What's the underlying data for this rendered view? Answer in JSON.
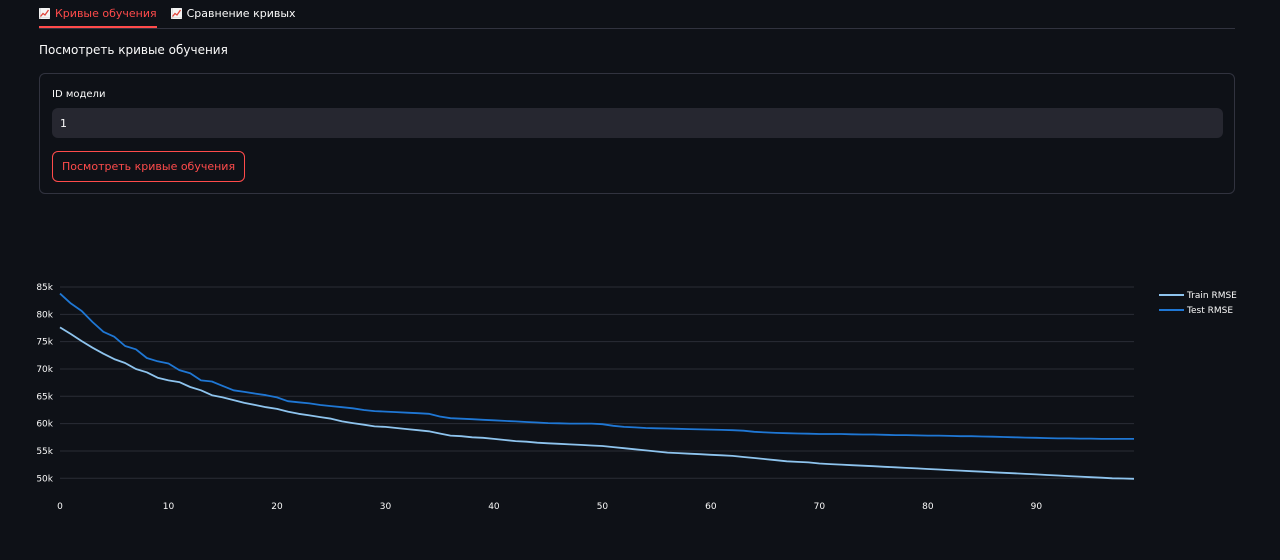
{
  "tabs": [
    {
      "label": "Кривые обучения",
      "active": true,
      "icon": "chart-increasing-icon"
    },
    {
      "label": "Сравнение кривых",
      "active": false,
      "icon": "chart-increasing-icon"
    }
  ],
  "section_title": "Посмотреть кривые обучения",
  "form": {
    "field_label": "ID модели",
    "field_value": "1",
    "submit_label": "Посмотреть кривые обучения"
  },
  "colors": {
    "accent": "#ff4b4b",
    "train": "#8ec4ee",
    "test": "#1f77d4",
    "grid": "#2a2d36",
    "background": "#0e1117"
  },
  "chart_data": {
    "type": "line",
    "x": [
      0,
      1,
      2,
      3,
      4,
      5,
      6,
      7,
      8,
      9,
      10,
      11,
      12,
      13,
      14,
      15,
      16,
      17,
      18,
      19,
      20,
      21,
      22,
      23,
      24,
      25,
      26,
      27,
      28,
      29,
      30,
      31,
      32,
      33,
      34,
      35,
      36,
      37,
      38,
      39,
      40,
      41,
      42,
      43,
      44,
      45,
      46,
      47,
      48,
      49,
      50,
      51,
      52,
      53,
      54,
      55,
      56,
      57,
      58,
      59,
      60,
      61,
      62,
      63,
      64,
      65,
      66,
      67,
      68,
      69,
      70,
      71,
      72,
      73,
      74,
      75,
      76,
      77,
      78,
      79,
      80,
      81,
      82,
      83,
      84,
      85,
      86,
      87,
      88,
      89,
      90,
      91,
      92,
      93,
      94,
      95,
      96,
      97,
      98,
      99
    ],
    "series": [
      {
        "name": "Train RMSE",
        "values": [
          77600,
          76400,
          75100,
          73900,
          72800,
          71800,
          71100,
          70000,
          69400,
          68400,
          67900,
          67600,
          66700,
          66100,
          65200,
          64800,
          64300,
          63800,
          63400,
          63000,
          62700,
          62200,
          61800,
          61500,
          61200,
          60900,
          60400,
          60100,
          59800,
          59500,
          59400,
          59200,
          59000,
          58800,
          58600,
          58200,
          57800,
          57700,
          57500,
          57400,
          57200,
          57000,
          56800,
          56700,
          56500,
          56400,
          56300,
          56200,
          56100,
          56000,
          55900,
          55700,
          55500,
          55300,
          55100,
          54900,
          54700,
          54600,
          54500,
          54400,
          54300,
          54200,
          54100,
          53900,
          53700,
          53500,
          53300,
          53100,
          53000,
          52900,
          52700,
          52600,
          52500,
          52400,
          52300,
          52200,
          52100,
          52000,
          51900,
          51800,
          51700,
          51600,
          51500,
          51400,
          51300,
          51200,
          51100,
          51000,
          50900,
          50800,
          50700,
          50600,
          50500,
          50400,
          50300,
          50200,
          50100,
          50000,
          49950,
          49900
        ]
      },
      {
        "name": "Test RMSE",
        "values": [
          83800,
          82000,
          80600,
          78600,
          76800,
          75900,
          74200,
          73600,
          72000,
          71400,
          71000,
          69800,
          69200,
          67900,
          67700,
          66900,
          66100,
          65800,
          65500,
          65200,
          64800,
          64100,
          63900,
          63700,
          63400,
          63200,
          63000,
          62800,
          62500,
          62300,
          62200,
          62100,
          62000,
          61900,
          61800,
          61300,
          61000,
          60900,
          60800,
          60700,
          60600,
          60500,
          60400,
          60300,
          60200,
          60100,
          60050,
          60000,
          60000,
          60000,
          59900,
          59600,
          59400,
          59300,
          59200,
          59150,
          59100,
          59050,
          59000,
          58950,
          58900,
          58850,
          58800,
          58700,
          58500,
          58400,
          58300,
          58250,
          58200,
          58150,
          58100,
          58100,
          58100,
          58050,
          58000,
          58000,
          57950,
          57900,
          57900,
          57850,
          57800,
          57800,
          57750,
          57700,
          57700,
          57650,
          57600,
          57550,
          57500,
          57450,
          57400,
          57350,
          57300,
          57300,
          57250,
          57250,
          57200,
          57200,
          57200,
          57200
        ]
      }
    ],
    "xticks": [
      0,
      10,
      20,
      30,
      40,
      50,
      60,
      70,
      80,
      90
    ],
    "yticks": [
      50000,
      55000,
      60000,
      65000,
      70000,
      75000,
      80000,
      85000
    ],
    "ytick_labels": [
      "50k",
      "55k",
      "60k",
      "65k",
      "70k",
      "75k",
      "80k",
      "85k"
    ],
    "xlim": [
      0,
      99
    ],
    "ylim": [
      49500,
      85000
    ],
    "grid": true,
    "legend_position": "top-right"
  }
}
